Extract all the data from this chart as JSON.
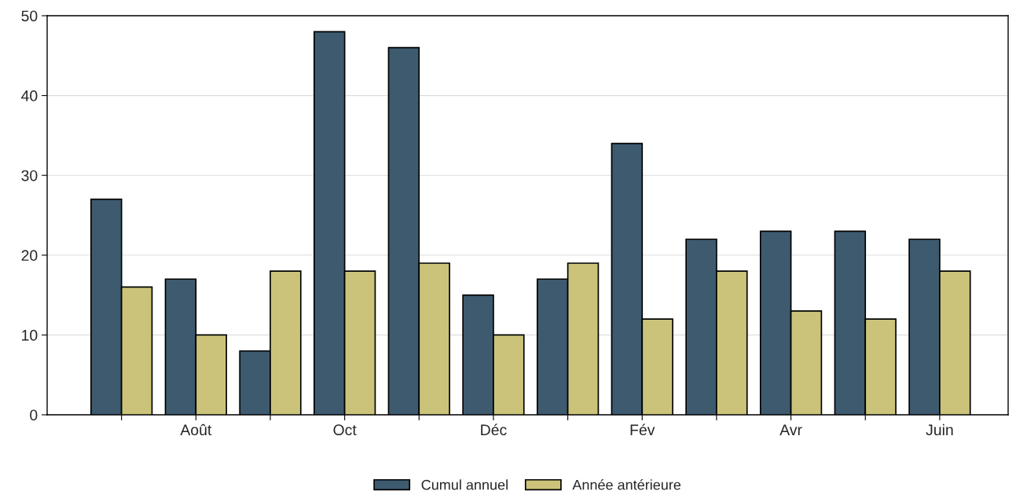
{
  "chart_data": {
    "type": "bar",
    "categories": [
      null,
      "Août",
      null,
      "Oct",
      null,
      "Déc",
      null,
      "Fév",
      null,
      "Avr",
      null,
      "Juin"
    ],
    "series": [
      {
        "name": "Cumul annuel",
        "color": "#3d5a6e",
        "values": [
          27,
          17,
          8,
          48,
          46,
          15,
          17,
          34,
          22,
          23,
          23,
          22
        ]
      },
      {
        "name": "Année antérieure",
        "color": "#cbc37a",
        "values": [
          16,
          10,
          18,
          18,
          19,
          10,
          19,
          12,
          18,
          13,
          12,
          18
        ]
      }
    ],
    "ylim": [
      0,
      50
    ],
    "yticks": [
      0,
      10,
      20,
      30,
      40,
      50
    ],
    "grid": "y",
    "legend": "bottom"
  }
}
